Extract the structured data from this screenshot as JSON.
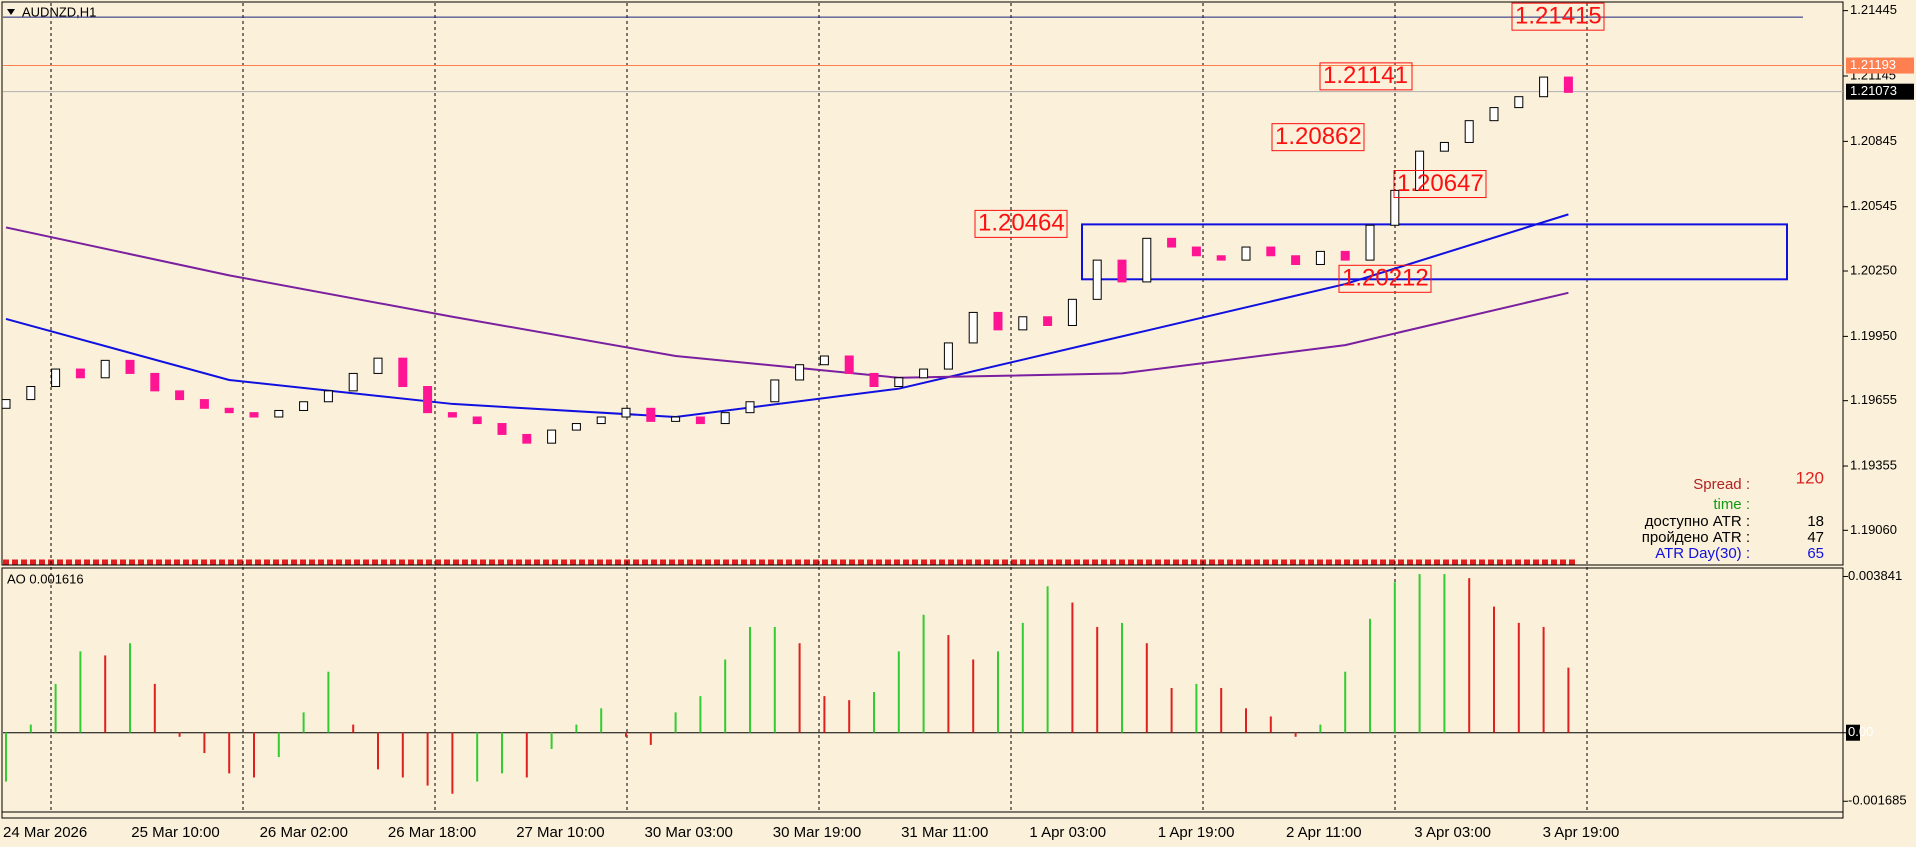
{
  "chart_data": {
    "type": "candlestick",
    "title": "AUDNZD,H1",
    "ylim": [
      1.1891,
      1.2148
    ],
    "yticks": [
      1.21445,
      1.21145,
      1.20845,
      1.20545,
      {
        "value": 1.2025,
        "label": "1.20250"
      },
      {
        "value": 1.1995,
        "label": "1.19950"
      },
      1.19655,
      1.19355,
      {
        "value": 1.1906,
        "label": "1.19060"
      }
    ],
    "time_labels": [
      "24 Mar 2026",
      "25 Mar 10:00",
      "26 Mar 02:00",
      "26 Mar 18:00",
      "27 Mar 10:00",
      "30 Mar 03:00",
      "30 Mar 19:00",
      "31 Mar 11:00",
      "1 Apr 03:00",
      "1 Apr 19:00",
      "2 Apr 11:00",
      "3 Apr 03:00",
      "3 Apr 19:00"
    ],
    "open": [
      1.1962,
      1.1966,
      1.1972,
      1.198,
      1.1976,
      1.1984,
      1.1978,
      1.197,
      1.1966,
      1.1962,
      1.196,
      1.1958,
      1.1961,
      1.1965,
      1.197,
      1.1978,
      1.1985,
      1.1972,
      1.196,
      1.1958,
      1.1955,
      1.195,
      1.1946,
      1.1952,
      1.1955,
      1.1958,
      1.1962,
      1.1956,
      1.1958,
      1.1955,
      1.196,
      1.1965,
      1.1975,
      1.1982,
      1.1986,
      1.1978,
      1.1972,
      1.1976,
      1.198,
      1.1992,
      1.2006,
      1.1998,
      1.2004,
      1.2,
      1.2012,
      1.203,
      1.202,
      1.204,
      1.2036,
      1.2032,
      1.203,
      1.2036,
      1.2032,
      1.2028,
      1.2034,
      1.203,
      1.2046,
      1.2062,
      1.208,
      1.2084,
      1.2094,
      1.21,
      1.2105,
      1.2114
    ],
    "close": [
      1.1966,
      1.1972,
      1.198,
      1.1976,
      1.1984,
      1.1978,
      1.197,
      1.1966,
      1.1962,
      1.196,
      1.1958,
      1.1961,
      1.1965,
      1.197,
      1.1978,
      1.1985,
      1.1972,
      1.196,
      1.1958,
      1.1955,
      1.195,
      1.1946,
      1.1952,
      1.1955,
      1.1958,
      1.1962,
      1.1956,
      1.1958,
      1.1955,
      1.196,
      1.1965,
      1.1975,
      1.1982,
      1.1986,
      1.1978,
      1.1972,
      1.1976,
      1.198,
      1.1992,
      1.2006,
      1.1998,
      1.2004,
      1.2,
      1.2012,
      1.203,
      1.202,
      1.204,
      1.2036,
      1.2032,
      1.203,
      1.2036,
      1.2032,
      1.2028,
      1.2034,
      1.203,
      1.2046,
      1.2062,
      1.208,
      1.2084,
      1.2094,
      1.21,
      1.2105,
      1.2114,
      1.2107
    ],
    "ma_x": [
      0,
      9,
      18,
      27,
      36,
      45,
      54,
      63
    ],
    "moving_averages": [
      {
        "color": "#1010e0",
        "values": [
          1.2003,
          1.1975,
          1.1964,
          1.1958,
          1.1971,
          1.1995,
          1.2019,
          1.2051
        ]
      },
      {
        "color": "#7a1fa0",
        "values": [
          1.2045,
          1.2023,
          1.2004,
          1.1986,
          1.1976,
          1.1978,
          1.1991,
          1.2015
        ]
      }
    ],
    "zone": [
      1.20212,
      1.20464
    ],
    "levels": [
      {
        "value": 1.21415,
        "color": "#1a237e"
      },
      {
        "value": 1.21193,
        "color": "#ff7f50"
      },
      {
        "value": 1.21073,
        "color": "#b0b0b0"
      }
    ],
    "price_tags": [
      {
        "value": 1.21193,
        "color": "#ff7f50"
      },
      {
        "value": 1.21073,
        "color": "#000000"
      }
    ],
    "annotations": [
      1.21415,
      1.21141,
      1.20862,
      1.20647,
      1.20464,
      1.20212
    ],
    "info": {
      "spread_label": "Spread :",
      "spread": 120,
      "time_label": "time :",
      "rows": [
        {
          "label": "доступно ATR :",
          "value": 18,
          "color": "#000000"
        },
        {
          "label": "пройдено ATR :",
          "value": 47,
          "color": "#000000"
        },
        {
          "label": "ATR Day(30) :",
          "value": 65,
          "color": "#1010e0"
        }
      ]
    },
    "oscillator": {
      "title": "AO 0.001616",
      "ylim": [
        -0.0019,
        0.004
      ],
      "yticks": [
        0.003841,
        {
          "value": 0,
          "label": "0.00"
        },
        -0.001685
      ],
      "up_color": "#32cd32",
      "down_color": "#e02020",
      "values": [
        -0.0012,
        0.0002,
        0.0012,
        0.002,
        0.0019,
        0.0022,
        0.0012,
        -0.0001,
        -0.0005,
        -0.001,
        -0.0011,
        -0.0006,
        0.0005,
        0.0015,
        0.0002,
        -0.0009,
        -0.0011,
        -0.0013,
        -0.0015,
        -0.0012,
        -0.001,
        -0.0011,
        -0.0004,
        0.0002,
        0.0006,
        -0.0001,
        -0.0003,
        0.0005,
        0.0009,
        0.0018,
        0.0026,
        0.0026,
        0.0022,
        0.0009,
        0.0008,
        0.001,
        0.002,
        0.0029,
        0.0024,
        0.0018,
        0.002,
        0.0027,
        0.0036,
        0.0032,
        0.0026,
        0.0027,
        0.0022,
        0.0011,
        0.0012,
        0.0011,
        0.0006,
        0.0004,
        -0.0001,
        0.0002,
        0.0015,
        0.0028,
        0.0037,
        0.0039,
        0.0039,
        0.0038,
        0.0031,
        0.0027,
        0.0026,
        0.0016
      ]
    }
  }
}
